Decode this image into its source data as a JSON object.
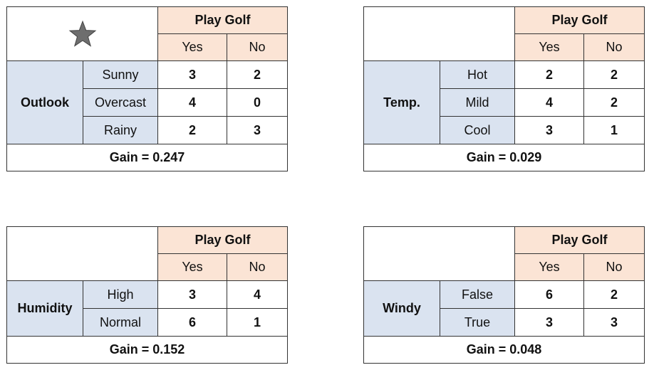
{
  "header": {
    "play_golf": "Play Golf",
    "yes": "Yes",
    "no": "No"
  },
  "panels": [
    {
      "attribute": "Outlook",
      "rows": [
        {
          "value": "Sunny",
          "yes": "3",
          "no": "2"
        },
        {
          "value": "Overcast",
          "yes": "4",
          "no": "0"
        },
        {
          "value": "Rainy",
          "yes": "2",
          "no": "3"
        }
      ],
      "gain": "Gain = 0.247"
    },
    {
      "attribute": "Temp.",
      "rows": [
        {
          "value": "Hot",
          "yes": "2",
          "no": "2"
        },
        {
          "value": "Mild",
          "yes": "4",
          "no": "2"
        },
        {
          "value": "Cool",
          "yes": "3",
          "no": "1"
        }
      ],
      "gain": "Gain = 0.029"
    },
    {
      "attribute": "Humidity",
      "rows": [
        {
          "value": "High",
          "yes": "3",
          "no": "4"
        },
        {
          "value": "Normal",
          "yes": "6",
          "no": "1"
        }
      ],
      "gain": "Gain = 0.152"
    },
    {
      "attribute": "Windy",
      "rows": [
        {
          "value": "False",
          "yes": "6",
          "no": "2"
        },
        {
          "value": "True",
          "yes": "3",
          "no": "3"
        }
      ],
      "gain": "Gain = 0.048"
    }
  ],
  "best_marker": "star-icon",
  "colors": {
    "header_fill": "#fbe4d5",
    "attribute_fill": "#dae3f0",
    "border": "#333333"
  }
}
